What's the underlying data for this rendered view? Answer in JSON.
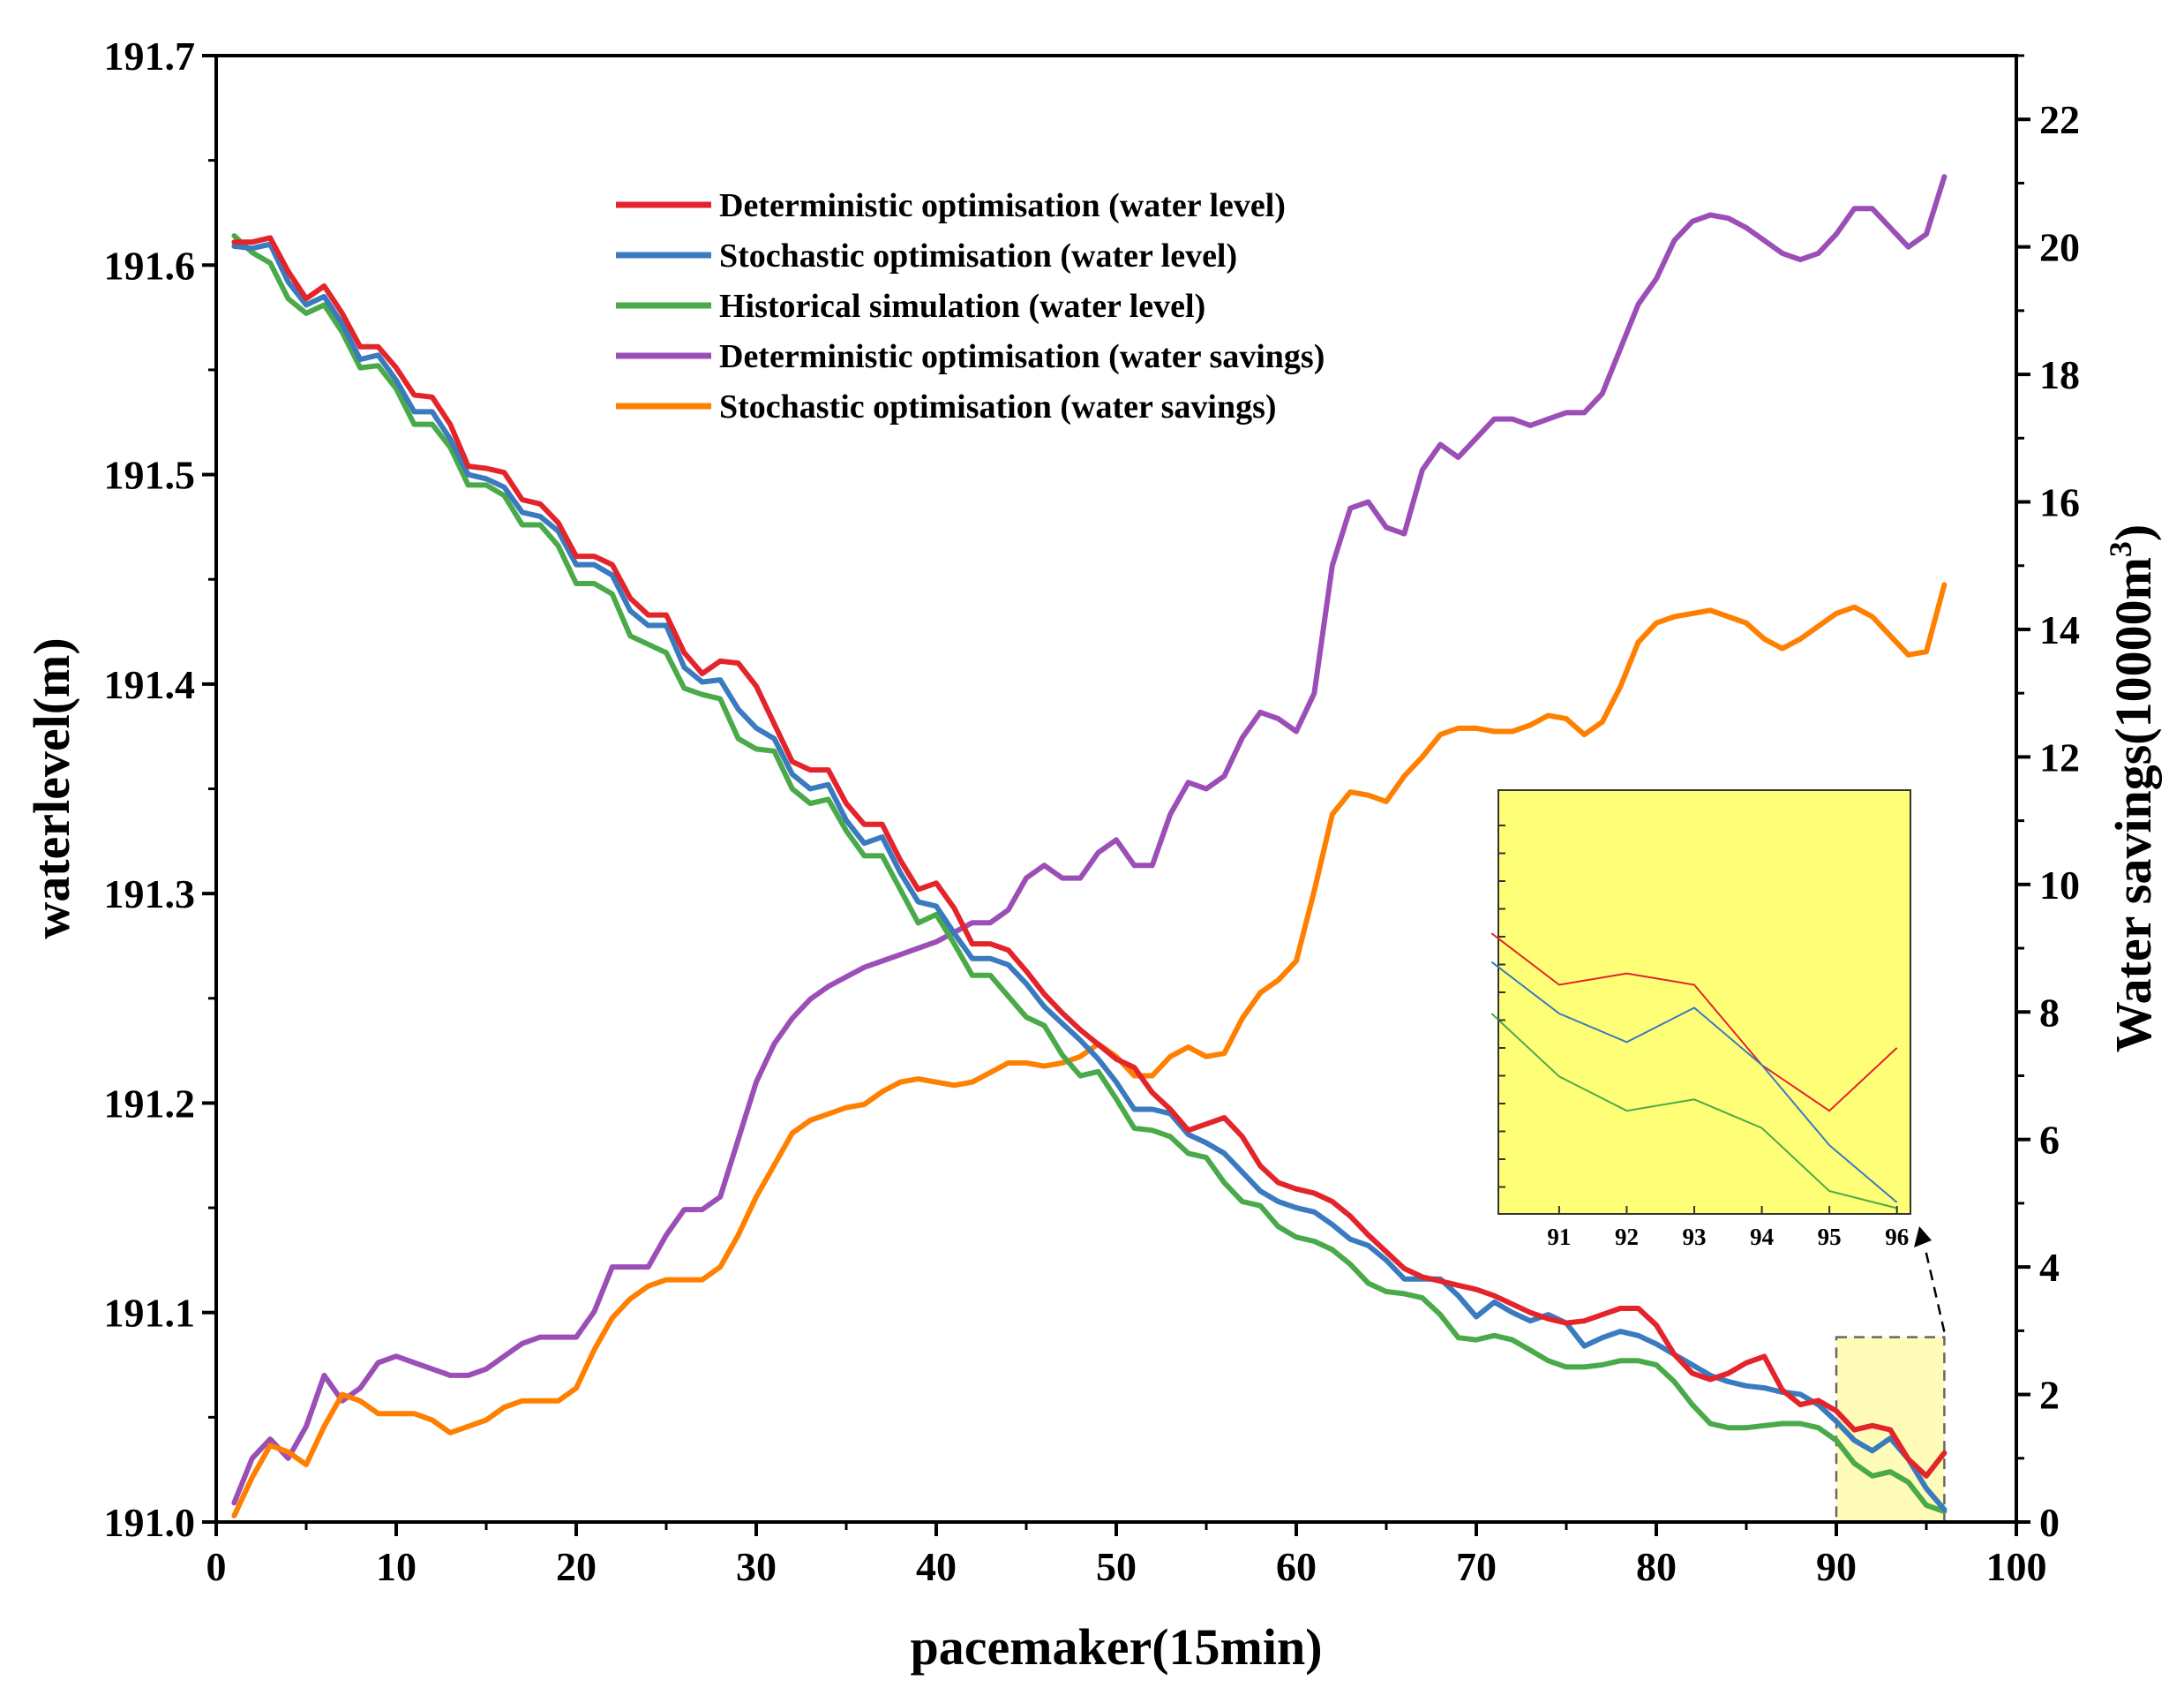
{
  "chart_data": {
    "type": "line",
    "xlabel": "pacemaker(15min)",
    "ylabel_left": "waterlevel(m)",
    "ylabel_right_base": "Water savings(10000m",
    "ylabel_right_sup": "3",
    "ylabel_right_close": ")",
    "xlim": [
      0,
      100
    ],
    "ylim_left": [
      191.0,
      191.7
    ],
    "ylim_right": [
      0,
      23
    ],
    "x_ticks": [
      "0",
      "10",
      "20",
      "30",
      "40",
      "50",
      "60",
      "70",
      "80",
      "90",
      "100"
    ],
    "y_left_ticks": [
      "191.0",
      "191.1",
      "191.2",
      "191.3",
      "191.4",
      "191.5",
      "191.6",
      "191.7"
    ],
    "y_right_ticks": [
      "0",
      "2",
      "4",
      "6",
      "8",
      "10",
      "12",
      "14",
      "16",
      "18",
      "20",
      "22"
    ],
    "legend": [
      "Deterministic optimisation (water level)",
      "Stochastic optimisation (water level)",
      "Historical simulation (water level)",
      "Deterministic optimisation (water savings)",
      "Stochastic optimisation (water savings)"
    ],
    "series": [
      {
        "name": "Deterministic optimisation (water level)",
        "axis": "left",
        "color": "#e3242b",
        "values": [
          191.611,
          191.611,
          191.613,
          191.597,
          191.584,
          191.59,
          191.577,
          191.561,
          191.561,
          191.551,
          191.538,
          191.537,
          191.524,
          191.504,
          191.503,
          191.501,
          191.488,
          191.486,
          191.477,
          191.461,
          191.461,
          191.457,
          191.441,
          191.433,
          191.433,
          191.415,
          191.405,
          191.411,
          191.41,
          191.399,
          191.381,
          191.363,
          191.359,
          191.359,
          191.343,
          191.333,
          191.333,
          191.316,
          191.302,
          191.305,
          191.293,
          191.276,
          191.276,
          191.273,
          191.263,
          191.252,
          191.243,
          191.235,
          191.228,
          191.221,
          191.217,
          191.205,
          191.197,
          191.187,
          191.19,
          191.193,
          191.184,
          191.17,
          191.162,
          191.159,
          191.157,
          191.153,
          191.146,
          191.137,
          191.129,
          191.121,
          191.117,
          191.115,
          191.113,
          191.111,
          191.108,
          191.104,
          191.1,
          191.097,
          191.095,
          191.096,
          191.099,
          191.102,
          191.102,
          191.094,
          191.08,
          191.071,
          191.068,
          191.071,
          191.076,
          191.079,
          191.063,
          191.056,
          191.058,
          191.053,
          191.044,
          191.046,
          191.044,
          191.03,
          191.022,
          191.033
        ]
      },
      {
        "name": "Stochastic optimisation (water level)",
        "axis": "left",
        "color": "#3a7abf",
        "values": [
          191.609,
          191.608,
          191.61,
          191.592,
          191.581,
          191.585,
          191.572,
          191.555,
          191.557,
          191.545,
          191.53,
          191.53,
          191.517,
          191.5,
          191.498,
          191.494,
          191.482,
          191.48,
          191.473,
          191.457,
          191.457,
          191.452,
          191.435,
          191.428,
          191.428,
          191.408,
          191.401,
          191.402,
          191.388,
          191.379,
          191.374,
          191.357,
          191.35,
          191.352,
          191.335,
          191.324,
          191.327,
          191.31,
          191.296,
          191.294,
          191.281,
          191.269,
          191.269,
          191.266,
          191.257,
          191.246,
          191.238,
          191.23,
          191.221,
          191.21,
          191.197,
          191.197,
          191.195,
          191.185,
          191.181,
          191.176,
          191.167,
          191.158,
          191.153,
          191.15,
          191.148,
          191.142,
          191.135,
          191.132,
          191.125,
          191.116,
          191.116,
          191.116,
          191.108,
          191.098,
          191.105,
          191.1,
          191.096,
          191.099,
          191.095,
          191.084,
          191.088,
          191.091,
          191.089,
          191.085,
          191.08,
          191.075,
          191.07,
          191.067,
          191.065,
          191.064,
          191.062,
          191.061,
          191.056,
          191.048,
          191.039,
          191.034,
          191.04,
          191.03,
          191.016,
          191.006
        ]
      },
      {
        "name": "Historical simulation (water level)",
        "axis": "left",
        "color": "#4aaa4a",
        "values": [
          191.614,
          191.606,
          191.601,
          191.584,
          191.577,
          191.581,
          191.568,
          191.551,
          191.552,
          191.541,
          191.524,
          191.524,
          191.513,
          191.495,
          191.495,
          191.49,
          191.476,
          191.476,
          191.466,
          191.448,
          191.448,
          191.443,
          191.423,
          191.419,
          191.415,
          191.398,
          191.395,
          191.393,
          191.374,
          191.369,
          191.368,
          191.35,
          191.343,
          191.345,
          191.33,
          191.318,
          191.318,
          191.302,
          191.286,
          191.29,
          191.276,
          191.261,
          191.261,
          191.251,
          191.241,
          191.237,
          191.223,
          191.213,
          191.215,
          191.202,
          191.188,
          191.187,
          191.184,
          191.176,
          191.174,
          191.162,
          191.153,
          191.151,
          191.141,
          191.136,
          191.134,
          191.13,
          191.123,
          191.114,
          191.11,
          191.109,
          191.107,
          191.099,
          191.088,
          191.087,
          191.089,
          191.087,
          191.082,
          191.077,
          191.074,
          191.074,
          191.075,
          191.077,
          191.077,
          191.075,
          191.067,
          191.056,
          191.047,
          191.045,
          191.045,
          191.046,
          191.047,
          191.047,
          191.045,
          191.039,
          191.028,
          191.022,
          191.024,
          191.019,
          191.008,
          191.005
        ]
      },
      {
        "name": "Deterministic optimisation (water savings)",
        "axis": "right",
        "color": "#9b4fb6",
        "values": [
          0.3,
          1.0,
          1.3,
          1.0,
          1.5,
          2.3,
          1.9,
          2.1,
          2.5,
          2.6,
          2.5,
          2.4,
          2.3,
          2.3,
          2.4,
          2.6,
          2.8,
          2.9,
          2.9,
          2.9,
          3.3,
          4.0,
          4.0,
          4.0,
          4.5,
          4.9,
          4.9,
          5.1,
          6.0,
          6.9,
          7.5,
          7.9,
          8.2,
          8.4,
          8.55,
          8.7,
          8.8,
          8.9,
          9.0,
          9.1,
          9.25,
          9.4,
          9.4,
          9.6,
          10.1,
          10.3,
          10.1,
          10.1,
          10.5,
          10.7,
          10.3,
          10.3,
          11.1,
          11.6,
          11.5,
          11.7,
          12.3,
          12.7,
          12.6,
          12.4,
          13.0,
          15.0,
          15.9,
          16.0,
          15.6,
          15.5,
          16.5,
          16.9,
          16.7,
          17.0,
          17.3,
          17.3,
          17.2,
          17.3,
          17.4,
          17.4,
          17.7,
          18.4,
          19.1,
          19.5,
          20.1,
          20.4,
          20.5,
          20.45,
          20.3,
          20.1,
          19.9,
          19.8,
          19.9,
          20.2,
          20.6,
          20.6,
          20.3,
          20.0,
          20.2,
          21.1
        ]
      },
      {
        "name": "Stochastic optimisation (water savings)",
        "axis": "right",
        "color": "#ff8000",
        "values": [
          0.1,
          0.7,
          1.2,
          1.1,
          0.9,
          1.5,
          2.0,
          1.9,
          1.7,
          1.7,
          1.7,
          1.6,
          1.4,
          1.5,
          1.6,
          1.8,
          1.9,
          1.9,
          1.9,
          2.1,
          2.7,
          3.2,
          3.5,
          3.7,
          3.8,
          3.8,
          3.8,
          4.0,
          4.5,
          5.1,
          5.6,
          6.1,
          6.3,
          6.4,
          6.5,
          6.55,
          6.75,
          6.9,
          6.95,
          6.9,
          6.85,
          6.9,
          7.05,
          7.2,
          7.2,
          7.15,
          7.2,
          7.3,
          7.5,
          7.3,
          7.0,
          7.0,
          7.3,
          7.45,
          7.3,
          7.35,
          7.9,
          8.3,
          8.5,
          8.8,
          9.9,
          11.1,
          11.45,
          11.4,
          11.3,
          11.7,
          12.0,
          12.35,
          12.45,
          12.45,
          12.4,
          12.4,
          12.5,
          12.65,
          12.6,
          12.35,
          12.55,
          13.1,
          13.8,
          14.1,
          14.2,
          14.25,
          14.3,
          14.2,
          14.1,
          13.85,
          13.7,
          13.85,
          14.05,
          14.25,
          14.35,
          14.2,
          13.9,
          13.6,
          13.65,
          14.7
        ]
      }
    ],
    "inset": {
      "x_ticks": [
        "91",
        "92",
        "93",
        "94",
        "95",
        "96"
      ],
      "x_range": [
        90.1,
        96.2
      ],
      "highlight_x": [
        90,
        96
      ],
      "highlight_y_right": [
        0,
        2.9
      ],
      "highlight_color": "#fffbb8",
      "background": "#ffff77"
    }
  }
}
